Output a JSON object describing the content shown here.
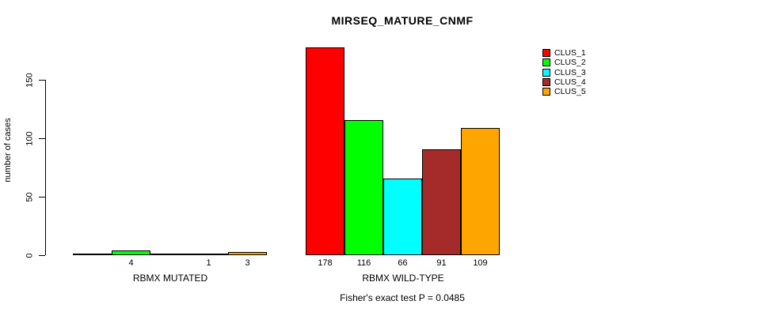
{
  "chart_data": {
    "type": "bar",
    "title": "MIRSEQ_MATURE_CNMF",
    "ylabel": "number of cases",
    "xlabel": "",
    "yticks": [
      "0",
      "50",
      "100",
      "150"
    ],
    "ytick_values": [
      0,
      50,
      100,
      150
    ],
    "ylim": [
      0,
      178
    ],
    "grid": false,
    "legend_position": "right",
    "series": [
      "CLUS_1",
      "CLUS_2",
      "CLUS_3",
      "CLUS_4",
      "CLUS_5"
    ],
    "colors": [
      "#FF0000",
      "#00FF00",
      "#00FFFF",
      "#A52A2A",
      "#FFA500"
    ],
    "groups": [
      {
        "label": "RBMX MUTATED",
        "values": [
          0,
          4,
          0,
          1,
          3
        ],
        "bar_labels": [
          "",
          "4",
          "",
          "1",
          "3"
        ]
      },
      {
        "label": "RBMX WILD-TYPE",
        "values": [
          178,
          116,
          66,
          91,
          109
        ],
        "bar_labels": [
          "178",
          "116",
          "66",
          "91",
          "109"
        ]
      }
    ],
    "annotation": "Fisher's exact test P = 0.0485",
    "text_color": "#000000",
    "background_color": "#FFFFFF"
  }
}
